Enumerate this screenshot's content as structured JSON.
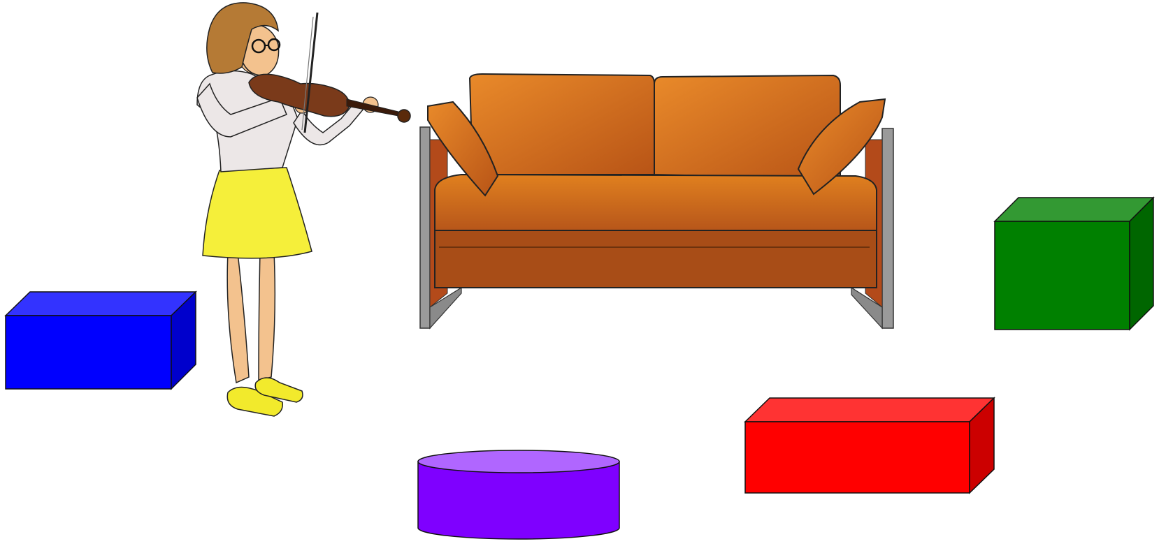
{
  "scene": {
    "background": "#ffffff",
    "objects": [
      {
        "id": "violinist",
        "kind": "figure",
        "label": "girl-playing-violin"
      },
      {
        "id": "sofa",
        "kind": "furniture",
        "label": "orange-sofa"
      },
      {
        "id": "blue_box",
        "kind": "cuboid",
        "color": "#0000ff"
      },
      {
        "id": "green_box",
        "kind": "cuboid",
        "color": "#008000"
      },
      {
        "id": "red_box",
        "kind": "cuboid",
        "color": "#ff0000"
      },
      {
        "id": "purple_cylinder",
        "kind": "cylinder",
        "color": "#7f00ff"
      }
    ]
  },
  "colors": {
    "sofa": "#d2691e",
    "sofa_dark": "#a84d17",
    "sofa_frame": "#9a9a9a",
    "skirt": "#f5ef3a",
    "hair": "#b57a35",
    "skin": "#f3c28e",
    "shirt": "#ece7e7",
    "violin": "#7a3a1a",
    "shoes": "#f2ea2c"
  }
}
